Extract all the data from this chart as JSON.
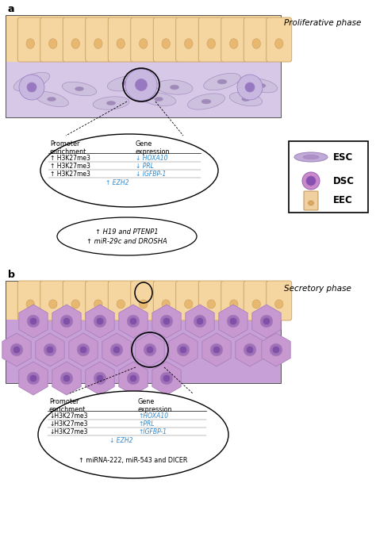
{
  "fig_width": 4.74,
  "fig_height": 6.72,
  "bg_color": "#ffffff",
  "panel_a_label": "a",
  "panel_b_label": "b",
  "phase_a_title": "Proliferative phase",
  "phase_b_title": "Secretory phase",
  "eec_color": "#f5d5a0",
  "eec_border": "#c8a060",
  "eec_nuc_color": "#e8b870",
  "esc_body_color": "#cdbfde",
  "esc_nucleus_color": "#a08ab8",
  "esc_border": "#a890c0",
  "stromal_bg_a": "#d8c8e8",
  "stromal_bg_b": "#c8a0d8",
  "hex_body_color": "#c898d0",
  "hex_nuc_color": "#a070b8",
  "hex_border": "#a880bc",
  "panel_border": "#444444",
  "between_text_line1": "↑ H19 and PTENP1",
  "between_text_line2": "↑ miR-29c and DROSHA",
  "ellipse_b_bottom_text": "↑ miRNA-222, miR-543 and DICER",
  "legend_esc_body": "#c0aad8",
  "legend_esc_nuc": "#b090c8",
  "legend_esc_border": "#a080b8",
  "legend_dsc_body": "#cc88cc",
  "legend_dsc_nuc": "#9060b0",
  "legend_dsc_border": "#9060b0",
  "legend_eec_body": "#f0d0a0",
  "legend_eec_nuc": "#d8a860",
  "legend_eec_border": "#c09050"
}
